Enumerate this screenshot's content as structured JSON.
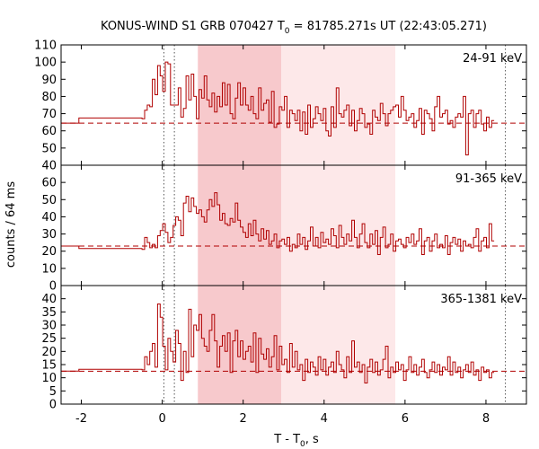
{
  "title": {
    "prefix": "KONUS-WIND S1 GRB 070427 T",
    "sub": "0",
    "suffix": " = 81785.271s UT (22:43:05.271)"
  },
  "xlabel": {
    "prefix": "T - T",
    "sub": "0",
    "suffix": ", s"
  },
  "ylabel": "counts / 64 ms",
  "chart_data": [
    {
      "type": "line",
      "panel": "24-91 keV",
      "bin_s": 0.064,
      "xlim": [
        -2.5,
        9.0
      ],
      "ylim": [
        40,
        110
      ],
      "yticks": [
        40,
        50,
        60,
        70,
        80,
        90,
        100,
        110
      ],
      "background_level": 64.5,
      "pre_burst": [
        {
          "x0": -2.5,
          "x1": -2.06,
          "y": 64.5
        },
        {
          "x0": -2.06,
          "x1": -0.5,
          "y": 67.5
        }
      ],
      "bins_start": -0.5,
      "counts": [
        67,
        72,
        75,
        74,
        90,
        81,
        98,
        92,
        83,
        100,
        99,
        75,
        75,
        75,
        85,
        68,
        73,
        92,
        78,
        93,
        80,
        67,
        84,
        79,
        92,
        78,
        74,
        82,
        71,
        80,
        74,
        88,
        75,
        87,
        70,
        67,
        79,
        88,
        75,
        85,
        75,
        72,
        80,
        70,
        67,
        85,
        72,
        76,
        78,
        65,
        83,
        62,
        64,
        74,
        72,
        80,
        62,
        72,
        70,
        66,
        72,
        60,
        71,
        58,
        75,
        62,
        67,
        74,
        70,
        66,
        73,
        60,
        57,
        74,
        62,
        85,
        70,
        68,
        72,
        75,
        63,
        72,
        60,
        66,
        73,
        70,
        62,
        64,
        58,
        72,
        68,
        66,
        76,
        70,
        63,
        70,
        72,
        74,
        75,
        68,
        80,
        72,
        66,
        68,
        70,
        62,
        66,
        73,
        58,
        72,
        70,
        67,
        60,
        74,
        80,
        68,
        70,
        72,
        64,
        66,
        62,
        68,
        70,
        68,
        80,
        46,
        70,
        72,
        62,
        70,
        72,
        64,
        60,
        68,
        62,
        66
      ]
    },
    {
      "type": "line",
      "panel": "91-365 keV",
      "bin_s": 0.064,
      "xlim": [
        -2.5,
        9.0
      ],
      "ylim": [
        0,
        70
      ],
      "yticks": [
        0,
        10,
        20,
        30,
        40,
        50,
        60
      ],
      "background_level": 23.0,
      "pre_burst": [
        {
          "x0": -2.5,
          "x1": -2.06,
          "y": 23.0
        },
        {
          "x0": -2.06,
          "x1": -0.5,
          "y": 21.5
        }
      ],
      "bins_start": -0.5,
      "counts": [
        21,
        28,
        25,
        22,
        24,
        22,
        29,
        32,
        36,
        31,
        25,
        28,
        35,
        40,
        38,
        29,
        48,
        52,
        43,
        51,
        46,
        42,
        44,
        40,
        37,
        44,
        50,
        46,
        54,
        47,
        38,
        42,
        36,
        35,
        39,
        37,
        48,
        38,
        34,
        31,
        28,
        36,
        29,
        38,
        30,
        26,
        33,
        27,
        32,
        24,
        26,
        30,
        22,
        26,
        27,
        24,
        28,
        20,
        24,
        22,
        30,
        24,
        28,
        21,
        26,
        34,
        23,
        28,
        22,
        31,
        25,
        27,
        24,
        33,
        29,
        22,
        35,
        28,
        24,
        30,
        26,
        38,
        28,
        22,
        30,
        36,
        25,
        22,
        30,
        24,
        32,
        18,
        28,
        34,
        22,
        24,
        30,
        20,
        26,
        27,
        24,
        22,
        28,
        25,
        30,
        24,
        26,
        33,
        18,
        26,
        28,
        20,
        26,
        30,
        22,
        24,
        22,
        29,
        18,
        25,
        28,
        24,
        27,
        20,
        26,
        23,
        24,
        22,
        28,
        33,
        20,
        26,
        28,
        22,
        36,
        26
      ]
    },
    {
      "type": "line",
      "panel": "365-1381 keV",
      "bin_s": 0.064,
      "xlim": [
        -2.5,
        9.0
      ],
      "ylim": [
        0,
        45
      ],
      "yticks": [
        0,
        5,
        10,
        15,
        20,
        25,
        30,
        35,
        40
      ],
      "background_level": 12.5,
      "pre_burst": [
        {
          "x0": -2.5,
          "x1": -2.06,
          "y": 12.5
        },
        {
          "x0": -2.06,
          "x1": -0.5,
          "y": 13.2
        }
      ],
      "bins_start": -0.5,
      "counts": [
        13,
        18,
        15,
        20,
        23,
        14,
        38,
        33,
        22,
        13,
        25,
        20,
        16,
        28,
        23,
        9,
        20,
        12,
        36,
        18,
        30,
        28,
        34,
        25,
        22,
        20,
        28,
        34,
        24,
        14,
        22,
        26,
        20,
        27,
        12,
        24,
        28,
        18,
        24,
        17,
        20,
        22,
        16,
        27,
        12,
        25,
        19,
        17,
        21,
        14,
        18,
        26,
        13,
        22,
        15,
        17,
        12,
        23,
        14,
        20,
        13,
        15,
        9,
        17,
        12,
        16,
        14,
        11,
        18,
        13,
        17,
        11,
        14,
        16,
        12,
        20,
        15,
        13,
        10,
        18,
        12,
        24,
        14,
        16,
        12,
        15,
        8,
        14,
        17,
        12,
        16,
        11,
        13,
        17,
        22,
        10,
        14,
        12,
        16,
        13,
        15,
        9,
        13,
        18,
        12,
        15,
        11,
        14,
        17,
        12,
        10,
        13,
        16,
        12,
        15,
        11,
        14,
        13,
        18,
        11,
        16,
        12,
        14,
        10,
        13,
        15,
        12,
        16,
        11,
        13,
        9,
        14,
        12,
        13,
        10,
        12
      ]
    }
  ],
  "shared_axis": {
    "xlim": [
      -2.5,
      9.0
    ],
    "xticks": [
      -2,
      0,
      2,
      4,
      6,
      8
    ],
    "shaded_intervals": [
      {
        "x0": 0.88,
        "x1": 2.94,
        "color": "#f7c9cc"
      },
      {
        "x0": 2.94,
        "x1": 5.76,
        "color": "#fde8e9"
      }
    ],
    "dotted_lines": [
      0.04,
      0.3,
      8.48
    ]
  },
  "colors": {
    "series": "#b00000",
    "frame": "#000000"
  }
}
